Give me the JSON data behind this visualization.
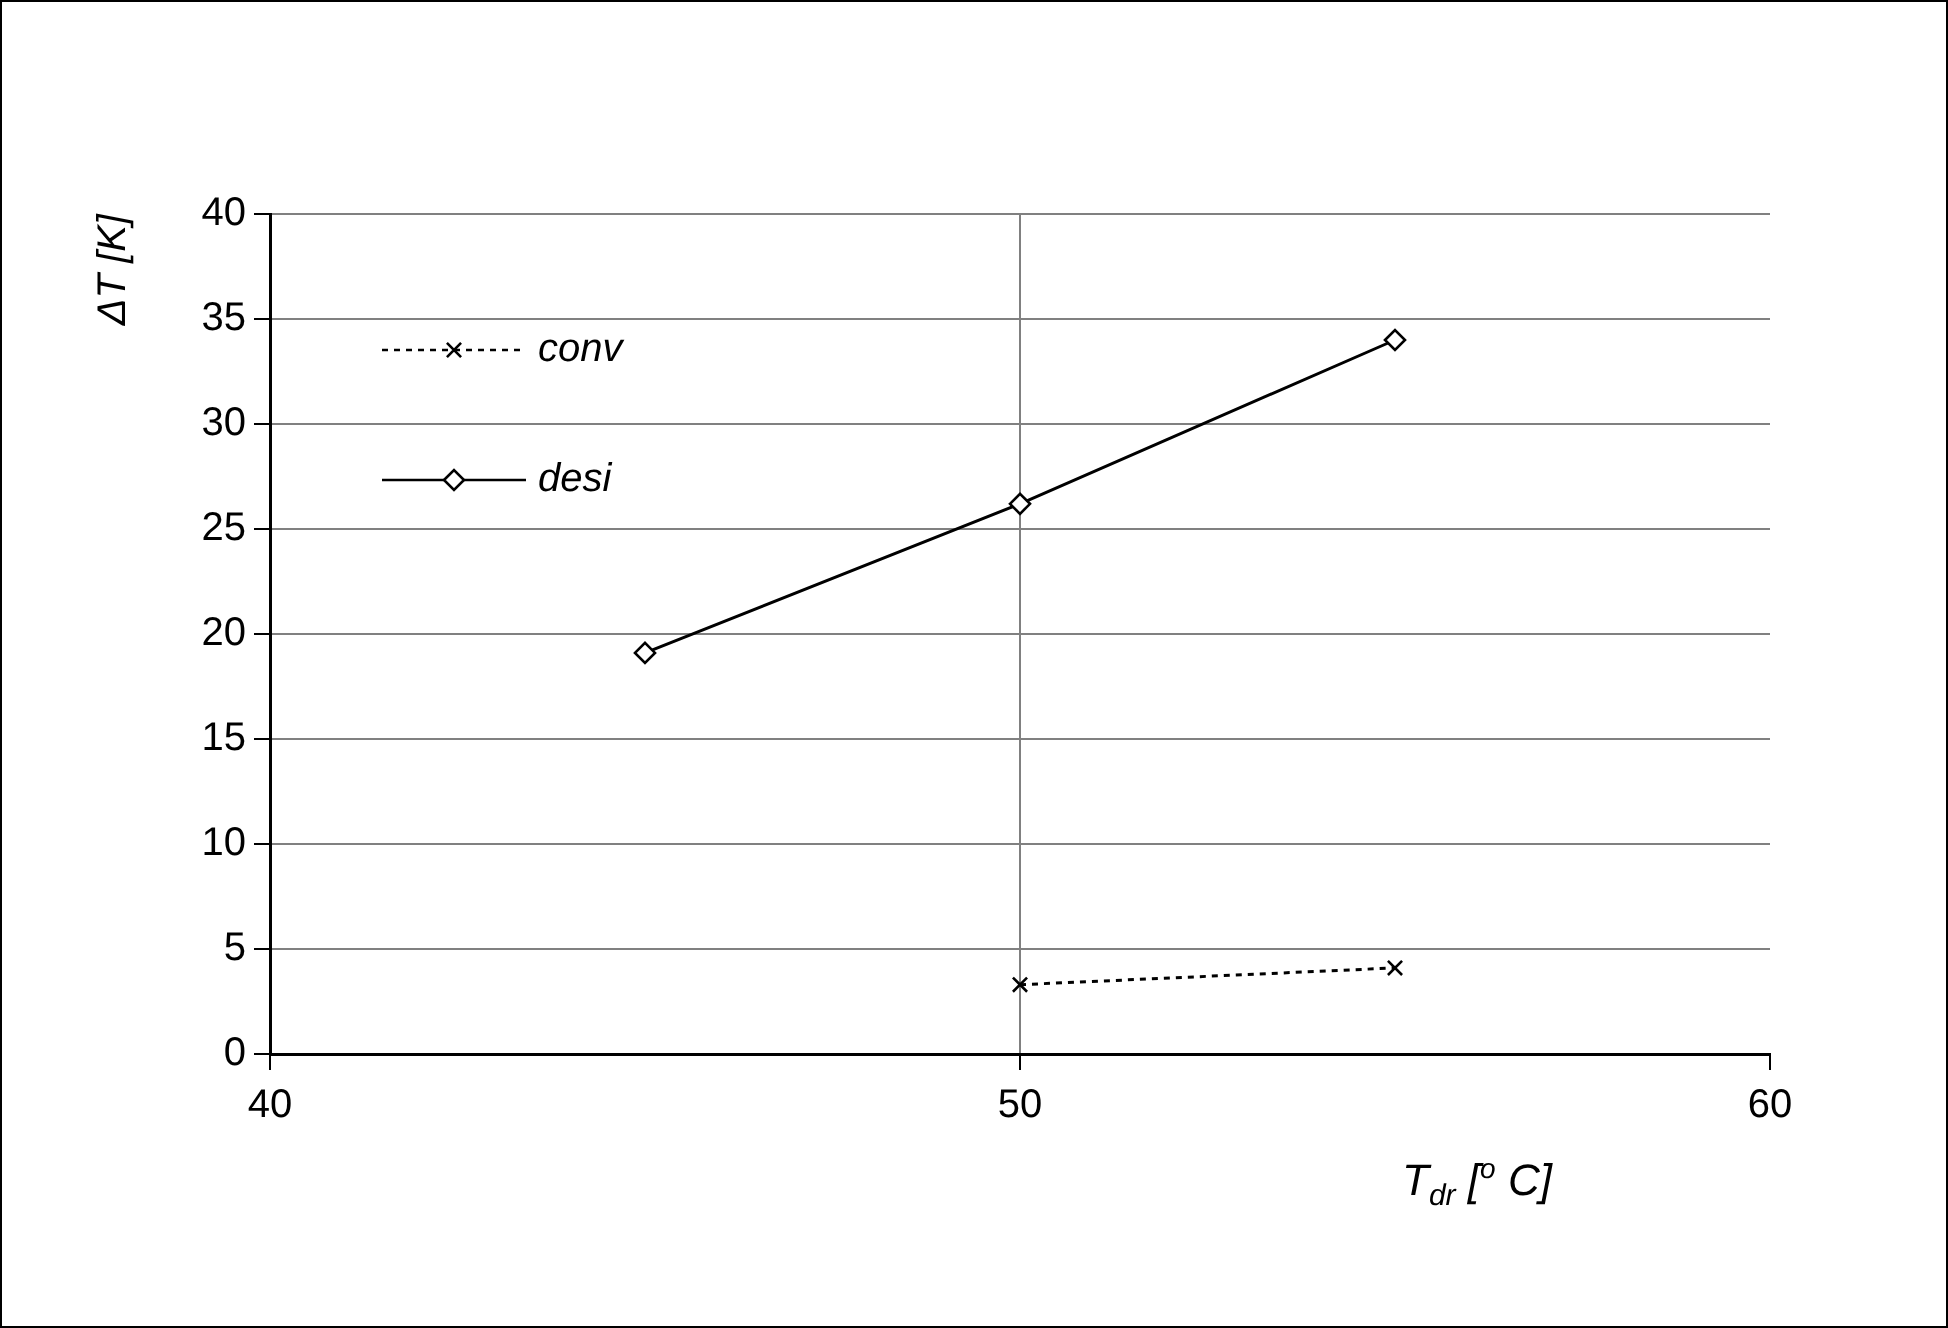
{
  "chart_data": {
    "type": "line",
    "xlabel": "T$_{dr}$ [$^{o}$ C]",
    "ylabel": "ΔT [K]",
    "xlim": [
      40,
      60
    ],
    "xticks": [
      40,
      50,
      60
    ],
    "ylim": [
      0,
      40
    ],
    "yticks": [
      0,
      5,
      10,
      15,
      20,
      25,
      30,
      35,
      40
    ],
    "grid": true,
    "legend": "top left",
    "series": [
      {
        "name": "conv",
        "color": "#000000",
        "marker": "cross",
        "line_style": "dotted",
        "x": [
          50,
          55
        ],
        "values": [
          3.3,
          4.1
        ]
      },
      {
        "name": "desi",
        "color": "#000000",
        "marker": "diamond",
        "line_style": "solid",
        "x": [
          45,
          50,
          55
        ],
        "values": [
          19.1,
          26.2,
          34
        ]
      }
    ]
  }
}
